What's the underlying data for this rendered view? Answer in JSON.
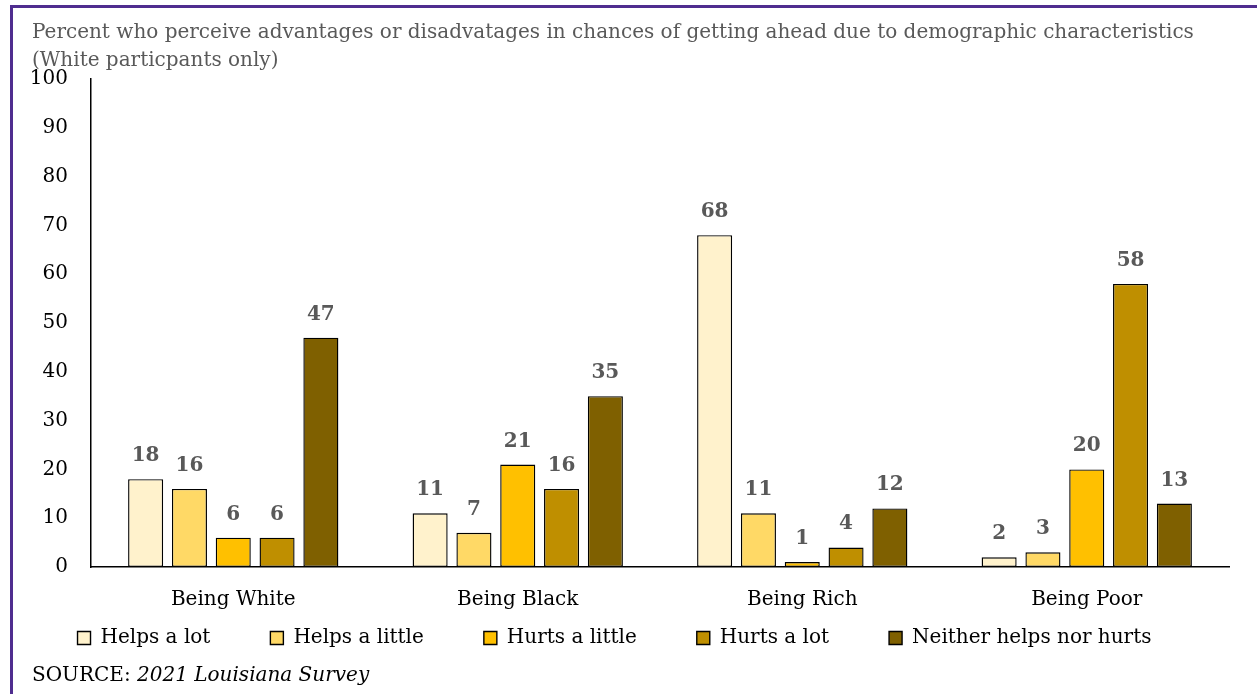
{
  "chart_data": {
    "type": "bar",
    "title": "Percent who perceive advantages or disadvatages in chances of getting ahead due to demographic characteristics (White particpants only)",
    "categories": [
      "Being White",
      "Being Black",
      "Being Rich",
      "Being Poor"
    ],
    "series": [
      {
        "name": "Helps a lot",
        "color": "#fff2cc",
        "values": [
          18,
          11,
          68,
          2
        ]
      },
      {
        "name": "Helps a little",
        "color": "#ffd966",
        "values": [
          16,
          7,
          11,
          3
        ]
      },
      {
        "name": "Hurts a little",
        "color": "#ffc000",
        "values": [
          6,
          21,
          1,
          20
        ]
      },
      {
        "name": "Hurts a lot",
        "color": "#bf8f00",
        "values": [
          6,
          16,
          4,
          58
        ]
      },
      {
        "name": "Neither helps nor hurts",
        "color": "#7f6000",
        "values": [
          47,
          35,
          12,
          13
        ]
      }
    ],
    "ylim": [
      0,
      100
    ],
    "yticks": [
      0,
      10,
      20,
      30,
      40,
      50,
      60,
      70,
      80,
      90,
      100
    ],
    "grid": false,
    "legend": "bottom",
    "data_labels": true,
    "annotations": [
      "SOURCE: 2021 Louisiana Survey"
    ]
  }
}
